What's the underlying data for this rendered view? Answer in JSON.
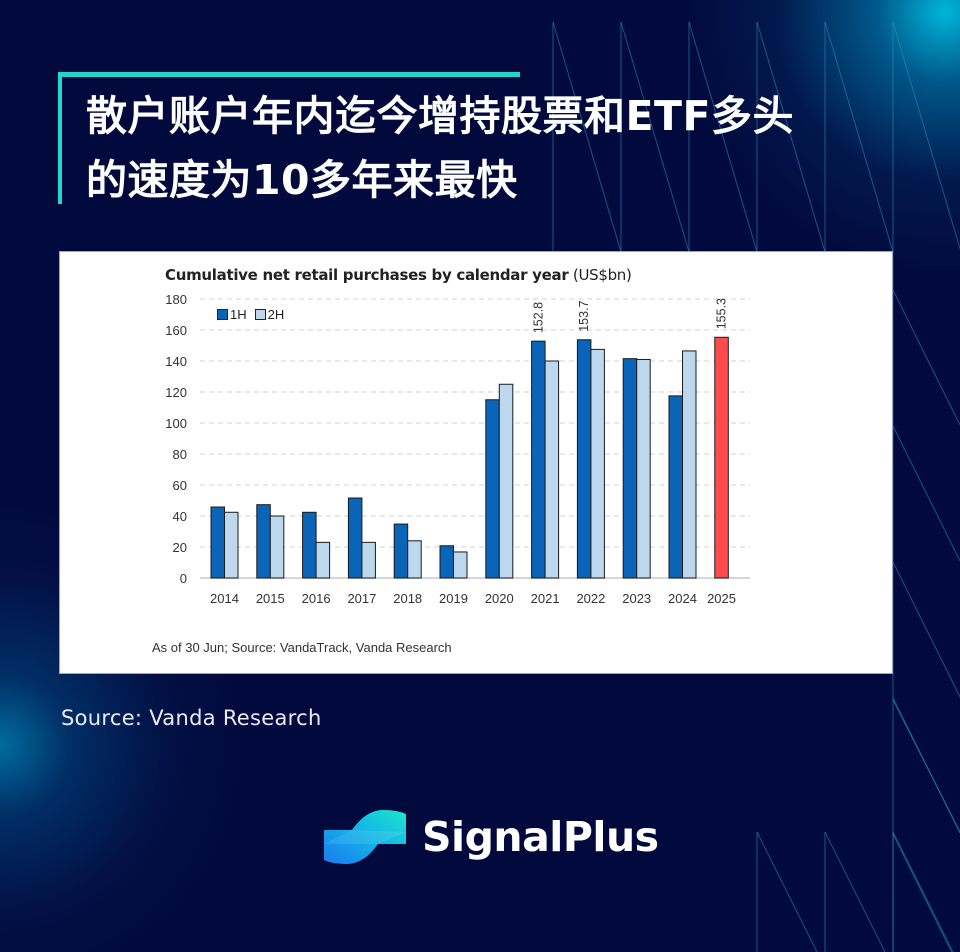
{
  "header": {
    "title_line1": "散户账户年内迄今增持股票和ETF多头",
    "title_line2": "的速度为10多年来最快"
  },
  "chart_card": {
    "title_bold": "Cumulative net retail purchases by calendar year",
    "title_unit": " (US$bn)",
    "footnote": "As of 30 Jun; Source: VandaTrack, Vanda Research"
  },
  "source_text": "Source: Vanda Research",
  "brand": {
    "name": "SignalPlus",
    "logo_icon": "signalplus-wave-logo"
  },
  "colors": {
    "background": "#020a3d",
    "accent": "#22d6d2",
    "series_1H": "#0a64b8",
    "series_2H": "#bdd7ee",
    "highlight_2025": "#ff4b4b"
  },
  "chart_data": {
    "type": "bar",
    "title": "Cumulative net retail purchases by calendar year (US$bn)",
    "xlabel": "",
    "ylabel": "US$bn",
    "ylim": [
      0,
      180
    ],
    "yticks": [
      0,
      20,
      40,
      60,
      80,
      100,
      120,
      140,
      160,
      180
    ],
    "grid": true,
    "legend_position": "top-left",
    "categories": [
      "2014",
      "2015",
      "2016",
      "2017",
      "2018",
      "2019",
      "2020",
      "2021",
      "2022",
      "2023",
      "2024",
      "2025"
    ],
    "series": [
      {
        "name": "1H",
        "values": [
          45.8,
          47.3,
          42.4,
          51.6,
          34.8,
          20.8,
          115,
          152.8,
          153.7,
          141.5,
          117.5,
          155.3
        ]
      },
      {
        "name": "2H",
        "values": [
          42.4,
          40,
          23,
          23,
          24,
          16.8,
          125,
          140,
          147.5,
          141,
          146.5,
          null
        ]
      }
    ],
    "annotations": [
      {
        "category": "2021",
        "series": "1H",
        "label": "152.8"
      },
      {
        "category": "2022",
        "series": "1H",
        "label": "153.7"
      },
      {
        "category": "2025",
        "series": "1H",
        "label": "155.3",
        "note": "highlighted red (year to date)"
      }
    ],
    "footnote": "As of 30 Jun; Source: VandaTrack, Vanda Research"
  }
}
